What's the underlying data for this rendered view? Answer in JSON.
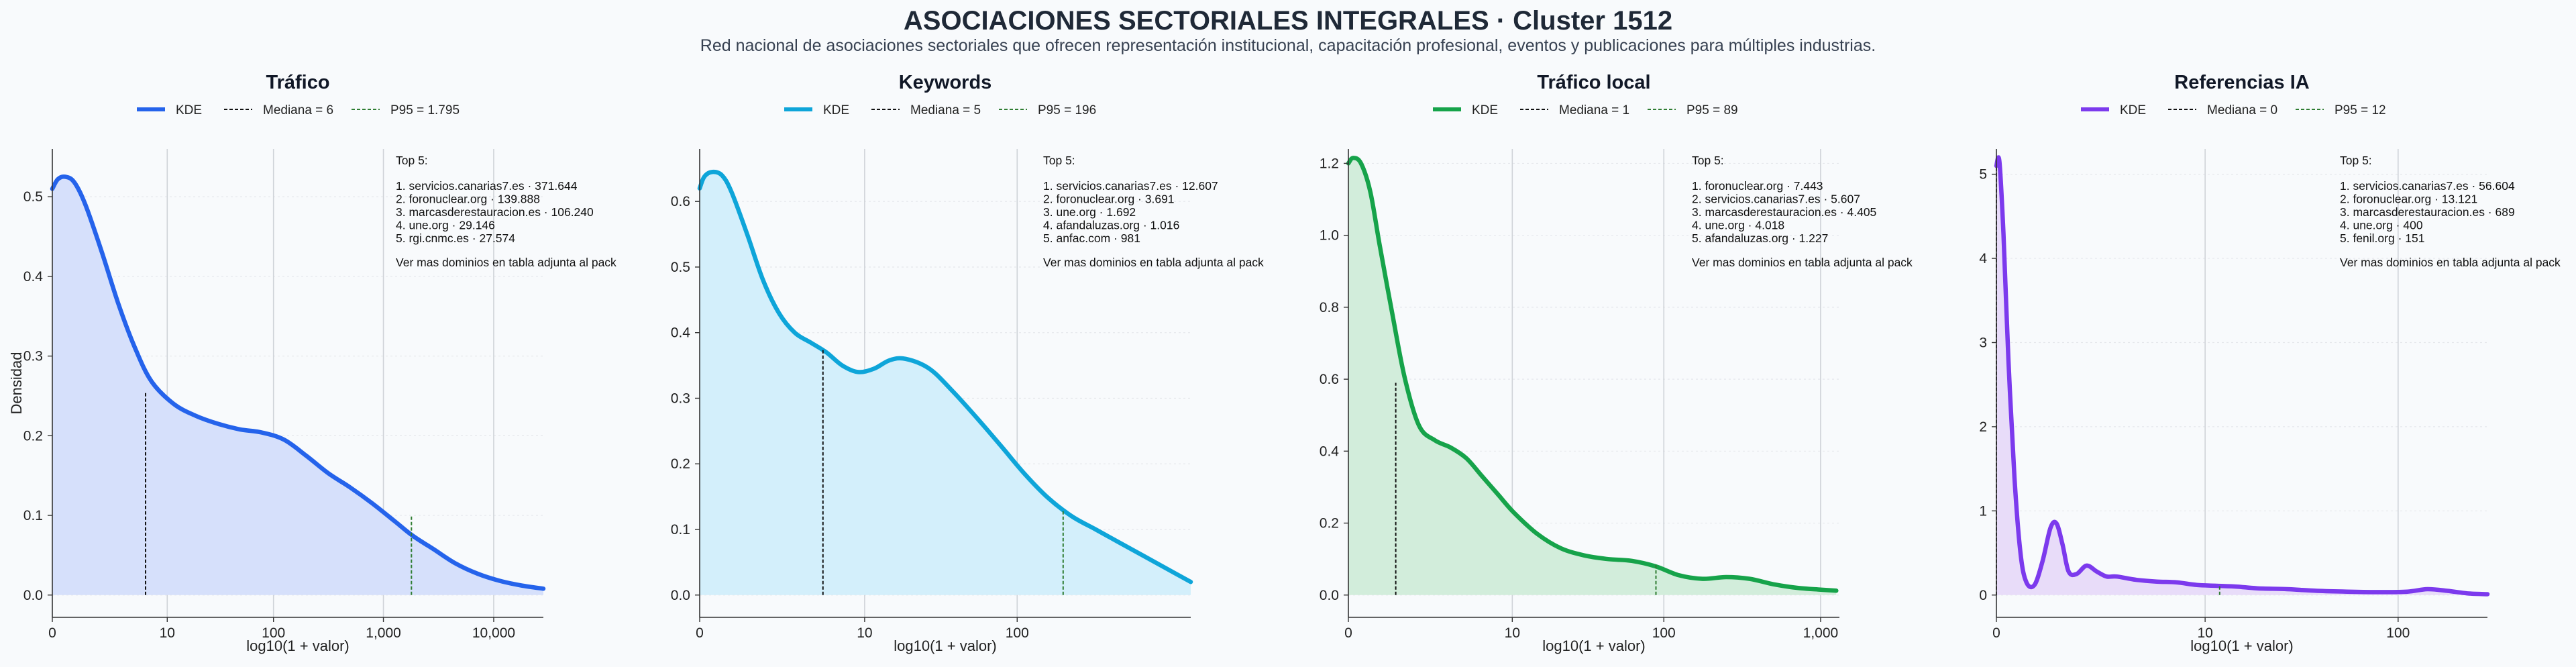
{
  "header": {
    "title": "ASOCIACIONES SECTORIALES INTEGRALES · Cluster 1512",
    "subtitle": "Red nacional de asociaciones sectoriales que ofrecen representación institucional, capacitación profesional, eventos y publicaciones para múltiples industrias."
  },
  "chart_data": [
    {
      "type": "area",
      "title": "Tráfico",
      "xlabel": "log10(1 + valor)",
      "ylabel": "Densidad",
      "color": "#2563eb",
      "fill": "#d6e0fb",
      "xlim": [
        0,
        4.45
      ],
      "ylim": [
        -0.028,
        0.56
      ],
      "x_ticks": [
        {
          "v": 0,
          "label": "0"
        },
        {
          "v": 1.0414,
          "label": "10"
        },
        {
          "v": 2.0043,
          "label": "100"
        },
        {
          "v": 3.0004,
          "label": "1,000"
        },
        {
          "v": 4.0,
          "label": "10,000"
        }
      ],
      "y_ticks": [
        {
          "v": 0,
          "label": "0.0"
        },
        {
          "v": 0.1,
          "label": "0.1"
        },
        {
          "v": 0.2,
          "label": "0.2"
        },
        {
          "v": 0.3,
          "label": "0.3"
        },
        {
          "v": 0.4,
          "label": "0.4"
        },
        {
          "v": 0.5,
          "label": "0.5"
        }
      ],
      "x": [
        0,
        0.05,
        0.12,
        0.2,
        0.3,
        0.45,
        0.6,
        0.75,
        0.9,
        1.1,
        1.3,
        1.5,
        1.7,
        1.9,
        2.1,
        2.3,
        2.5,
        2.7,
        2.9,
        3.1,
        3.26,
        3.45,
        3.65,
        3.85,
        4.05,
        4.25,
        4.45
      ],
      "y": [
        0.51,
        0.522,
        0.525,
        0.518,
        0.49,
        0.43,
        0.365,
        0.31,
        0.268,
        0.24,
        0.225,
        0.215,
        0.208,
        0.204,
        0.195,
        0.175,
        0.153,
        0.135,
        0.115,
        0.093,
        0.075,
        0.058,
        0.04,
        0.027,
        0.018,
        0.012,
        0.008
      ],
      "median": {
        "x": 0.8451,
        "y": 0.256
      },
      "p95": {
        "x": 3.2543,
        "y": 0.099
      },
      "legend": {
        "kde": "KDE",
        "median": "Mediana = 6",
        "p95": "P95 = 1.795"
      },
      "top5": {
        "heading": "Top 5:",
        "items": [
          "1. servicios.canarias7.es · 371.644",
          "2. foronuclear.org · 139.888",
          "3. marcasderestauracion.es · 106.240",
          "4. une.org · 29.146",
          "5. rgi.cnmc.es · 27.574"
        ],
        "footer": "Ver mas dominios en tabla adjunta al pack"
      }
    },
    {
      "type": "area",
      "title": "Keywords",
      "xlabel": "log10(1 + valor)",
      "ylabel": "",
      "color": "#0ea5d9",
      "fill": "#d3effb",
      "xlim": [
        0,
        3.1
      ],
      "ylim": [
        -0.034,
        0.68
      ],
      "x_ticks": [
        {
          "v": 0,
          "label": "0"
        },
        {
          "v": 1.0414,
          "label": "10"
        },
        {
          "v": 2.0043,
          "label": "100"
        }
      ],
      "y_ticks": [
        {
          "v": 0,
          "label": "0.0"
        },
        {
          "v": 0.1,
          "label": "0.1"
        },
        {
          "v": 0.2,
          "label": "0.2"
        },
        {
          "v": 0.3,
          "label": "0.3"
        },
        {
          "v": 0.4,
          "label": "0.4"
        },
        {
          "v": 0.5,
          "label": "0.5"
        },
        {
          "v": 0.6,
          "label": "0.6"
        }
      ],
      "x": [
        0,
        0.03,
        0.08,
        0.14,
        0.2,
        0.3,
        0.4,
        0.5,
        0.6,
        0.7,
        0.8,
        0.9,
        1.0,
        1.1,
        1.2,
        1.3,
        1.45,
        1.6,
        1.75,
        1.9,
        2.05,
        2.2,
        2.35,
        2.5,
        2.65,
        2.8,
        2.95,
        3.1
      ],
      "y": [
        0.62,
        0.638,
        0.645,
        0.64,
        0.615,
        0.55,
        0.48,
        0.43,
        0.4,
        0.385,
        0.37,
        0.35,
        0.34,
        0.345,
        0.358,
        0.36,
        0.345,
        0.31,
        0.27,
        0.228,
        0.185,
        0.148,
        0.12,
        0.1,
        0.08,
        0.06,
        0.04,
        0.02
      ],
      "median": {
        "x": 0.7782,
        "y": 0.375
      },
      "p95": {
        "x": 2.2945,
        "y": 0.13
      },
      "legend": {
        "kde": "KDE",
        "median": "Mediana = 5",
        "p95": "P95 = 196"
      },
      "top5": {
        "heading": "Top 5:",
        "items": [
          "1. servicios.canarias7.es · 12.607",
          "2. foronuclear.org · 3.691",
          "3. une.org · 1.692",
          "4. afandaluzas.org · 1.016",
          "5. anfac.com · 981"
        ],
        "footer": "Ver mas dominios en tabla adjunta al pack"
      }
    },
    {
      "type": "area",
      "title": "Tráfico local",
      "xlabel": "log10(1 + valor)",
      "ylabel": "",
      "color": "#16a34a",
      "fill": "#d2eddb",
      "xlim": [
        0,
        3.12
      ],
      "ylim": [
        -0.062,
        1.24
      ],
      "x_ticks": [
        {
          "v": 0,
          "label": "0"
        },
        {
          "v": 1.0414,
          "label": "10"
        },
        {
          "v": 2.0043,
          "label": "100"
        },
        {
          "v": 3.0004,
          "label": "1,000"
        }
      ],
      "y_ticks": [
        {
          "v": 0,
          "label": "0.0"
        },
        {
          "v": 0.2,
          "label": "0.2"
        },
        {
          "v": 0.4,
          "label": "0.4"
        },
        {
          "v": 0.6,
          "label": "0.6"
        },
        {
          "v": 0.8,
          "label": "0.8"
        },
        {
          "v": 1.0,
          "label": "1.0"
        },
        {
          "v": 1.2,
          "label": "1.2"
        }
      ],
      "x": [
        0,
        0.03,
        0.08,
        0.14,
        0.2,
        0.28,
        0.36,
        0.45,
        0.55,
        0.65,
        0.75,
        0.85,
        0.95,
        1.05,
        1.2,
        1.35,
        1.5,
        1.65,
        1.8,
        1.95,
        2.1,
        2.25,
        2.4,
        2.55,
        2.7,
        2.85,
        3.0,
        3.1
      ],
      "y": [
        1.2,
        1.215,
        1.2,
        1.12,
        0.97,
        0.78,
        0.6,
        0.47,
        0.43,
        0.41,
        0.38,
        0.33,
        0.28,
        0.23,
        0.17,
        0.13,
        0.11,
        0.1,
        0.095,
        0.08,
        0.055,
        0.045,
        0.05,
        0.045,
        0.03,
        0.02,
        0.015,
        0.012
      ],
      "median": {
        "x": 0.301,
        "y": 0.59
      },
      "p95": {
        "x": 1.9542,
        "y": 0.085
      },
      "legend": {
        "kde": "KDE",
        "median": "Mediana = 1",
        "p95": "P95 = 89"
      },
      "top5": {
        "heading": "Top 5:",
        "items": [
          "1. foronuclear.org · 7.443",
          "2. servicios.canarias7.es · 5.607",
          "3. marcasderestauracion.es · 4.405",
          "4. une.org · 4.018",
          "5. afandaluzas.org · 1.227"
        ],
        "footer": "Ver mas dominios en tabla adjunta al pack"
      }
    },
    {
      "type": "area",
      "title": "Referencias IA",
      "xlabel": "log10(1 + valor)",
      "ylabel": "",
      "color": "#7c3aed",
      "fill": "#e8dcf9",
      "xlim": [
        0,
        2.45
      ],
      "ylim": [
        -0.265,
        5.3
      ],
      "x_ticks": [
        {
          "v": 0,
          "label": "0"
        },
        {
          "v": 1.0414,
          "label": "10"
        },
        {
          "v": 2.0043,
          "label": "100"
        }
      ],
      "y_ticks": [
        {
          "v": 0,
          "label": "0"
        },
        {
          "v": 1,
          "label": "1"
        },
        {
          "v": 2,
          "label": "2"
        },
        {
          "v": 3,
          "label": "3"
        },
        {
          "v": 4,
          "label": "4"
        },
        {
          "v": 5,
          "label": "5"
        }
      ],
      "x": [
        0,
        0.015,
        0.035,
        0.06,
        0.09,
        0.12,
        0.15,
        0.19,
        0.23,
        0.27,
        0.3,
        0.33,
        0.36,
        0.4,
        0.45,
        0.5,
        0.55,
        0.6,
        0.7,
        0.8,
        0.9,
        1.0,
        1.1,
        1.2,
        1.3,
        1.45,
        1.6,
        1.75,
        1.9,
        2.05,
        2.15,
        2.25,
        2.35,
        2.45
      ],
      "y": [
        5.1,
        5.15,
        4.3,
        2.8,
        1.4,
        0.5,
        0.15,
        0.12,
        0.4,
        0.8,
        0.85,
        0.6,
        0.28,
        0.25,
        0.35,
        0.28,
        0.22,
        0.22,
        0.18,
        0.16,
        0.15,
        0.12,
        0.11,
        0.1,
        0.08,
        0.07,
        0.05,
        0.04,
        0.035,
        0.04,
        0.07,
        0.05,
        0.02,
        0.01
      ],
      "median": {
        "x": 0,
        "y": 5.1
      },
      "p95": {
        "x": 1.1139,
        "y": 0.11
      },
      "legend": {
        "kde": "KDE",
        "median": "Mediana = 0",
        "p95": "P95 = 12"
      },
      "top5": {
        "heading": "Top 5:",
        "items": [
          "1. servicios.canarias7.es · 56.604",
          "2. foronuclear.org · 13.121",
          "3. marcasderestauracion.es · 689",
          "4. une.org · 400",
          "5. fenil.org · 151"
        ],
        "footer": "Ver mas dominios en tabla adjunta al pack"
      }
    }
  ]
}
